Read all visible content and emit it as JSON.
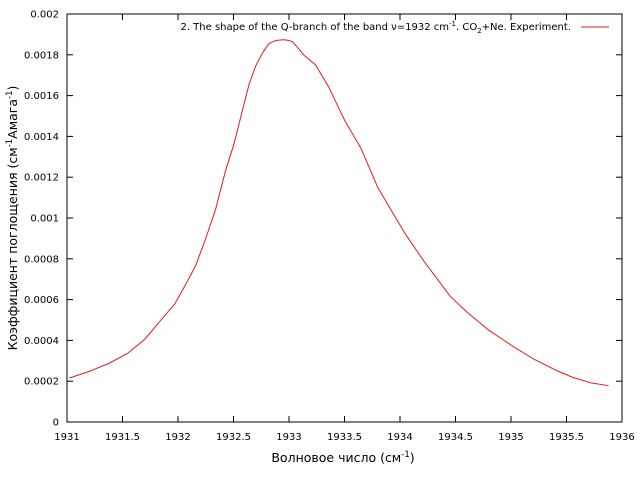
{
  "chart_data": {
    "type": "line",
    "xlabel": {
      "base": "Волновое число (см",
      "sup": "-1",
      "tail": ")"
    },
    "ylabel": {
      "base": "Коэффициент поглощения (см",
      "sup1": "-1",
      "mid": "Амага",
      "sup2": "-1",
      "tail": ")"
    },
    "xlim": [
      1931,
      1936
    ],
    "ylim": [
      0,
      0.002
    ],
    "x_ticks": [
      "1931",
      "1931.5",
      "1932",
      "1932.5",
      "1933",
      "1933.5",
      "1934",
      "1934.5",
      "1935",
      "1935.5",
      "1936"
    ],
    "y_ticks": [
      "0",
      "0.0002",
      "0.0004",
      "0.0006",
      "0.0008",
      "0.001",
      "0.0012",
      "0.0014",
      "0.0016",
      "0.0018",
      "0.002"
    ],
    "legend_position": "top-right",
    "grid": false,
    "series": [
      {
        "name": {
          "part1": "2. The shape of the Q-branch of the band ν=1932 cm",
          "sup": "-1",
          "part2": ". CO",
          "sub": "2",
          "part3": "+Ne. Experiment."
        },
        "color": "#e41a1c",
        "x": [
          1931.02,
          1931.2,
          1931.38,
          1931.55,
          1931.7,
          1931.85,
          1931.97,
          1932.07,
          1932.16,
          1932.25,
          1932.34,
          1932.43,
          1932.5,
          1932.57,
          1932.64,
          1932.7,
          1932.76,
          1932.82,
          1932.88,
          1932.93,
          1932.97,
          1933.03,
          1933.08,
          1933.13,
          1933.24,
          1933.36,
          1933.5,
          1933.65,
          1933.8,
          1933.94,
          1934.05,
          1934.22,
          1934.45,
          1934.6,
          1934.8,
          1935.02,
          1935.2,
          1935.4,
          1935.55,
          1935.72,
          1935.88
        ],
        "y": [
          0.000215,
          0.000248,
          0.000288,
          0.000338,
          0.000405,
          0.000502,
          0.000578,
          0.000675,
          0.000768,
          0.0009,
          0.001045,
          0.001235,
          0.001355,
          0.001505,
          0.001655,
          0.001745,
          0.001808,
          0.001855,
          0.00187,
          0.001873,
          0.001873,
          0.001865,
          0.001835,
          0.0018,
          0.00175,
          0.00164,
          0.00148,
          0.00134,
          0.00115,
          0.00102,
          0.00092,
          0.000785,
          0.000618,
          0.00054,
          0.00045,
          0.00037,
          0.00031,
          0.000255,
          0.00022,
          0.000192,
          0.000178
        ]
      }
    ]
  }
}
